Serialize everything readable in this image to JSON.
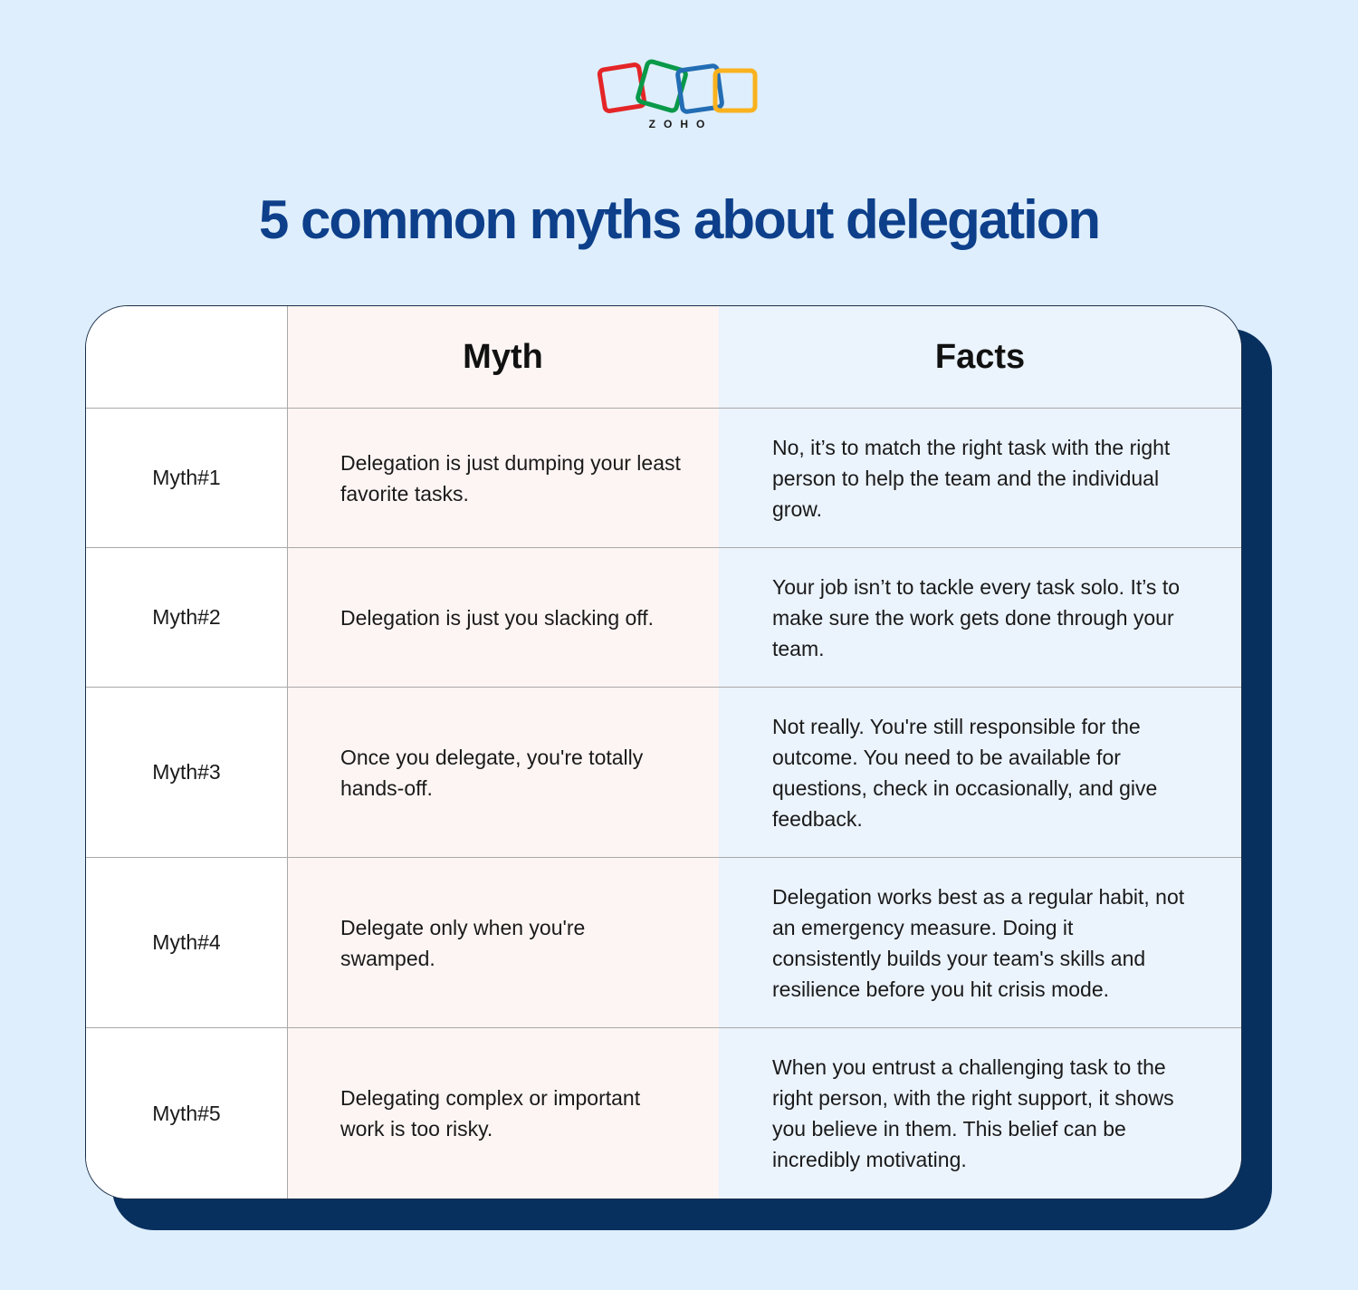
{
  "logo": {
    "wordmark": "ZOHO",
    "colors": [
      "#e42527",
      "#089949",
      "#226db4",
      "#f9b21d"
    ]
  },
  "title": "5 common myths about delegation",
  "table": {
    "headers": {
      "label": "",
      "myth": "Myth",
      "facts": "Facts"
    },
    "rows": [
      {
        "label": "Myth#1",
        "myth": "Delegation is just dumping your least favorite tasks.",
        "fact": "No, it’s to match the right task with the right person to help the team and the individual grow."
      },
      {
        "label": "Myth#2",
        "myth": "Delegation is just you slacking off.",
        "fact": "Your job isn’t to tackle every task solo. It’s to make sure the work gets done through your team."
      },
      {
        "label": "Myth#3",
        "myth": "Once you delegate, you're totally hands-off.",
        "fact": "Not really. You're still responsible for the outcome. You need to be available for questions, check in occasionally, and give feedback."
      },
      {
        "label": "Myth#4",
        "myth": "Delegate only when you're swamped.",
        "fact": "Delegation works best as a regular habit, not an emergency measure. Doing it consistently builds your team's skills and resilience before you hit crisis mode."
      },
      {
        "label": "Myth#5",
        "myth": "Delegating complex or important work is too risky.",
        "fact": "When you entrust a challenging task to the right person, with the right support, it shows you believe in them. This belief can be incredibly motivating."
      }
    ]
  },
  "colors": {
    "background": "#deeefc",
    "title": "#0d3f8a",
    "shadow": "#07305f",
    "myth_column": "#fdf5f3",
    "facts_column": "#ebf3fd"
  }
}
